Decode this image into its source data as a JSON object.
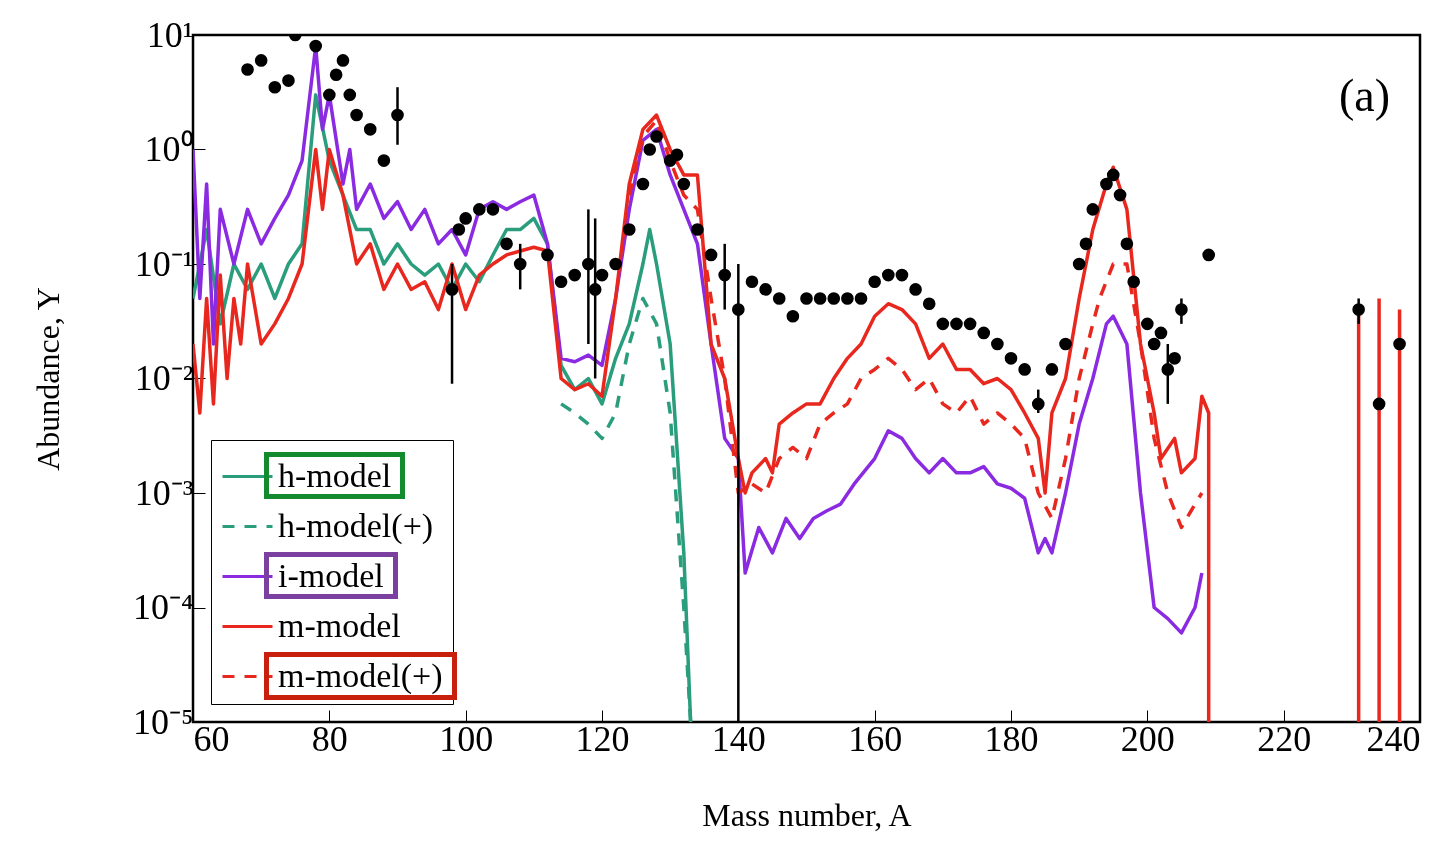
{
  "chart_data": {
    "type": "line",
    "xlabel": "Mass number, A",
    "ylabel": "Abundance, Y",
    "annotations": [
      "(a)"
    ],
    "xlim": [
      60,
      240
    ],
    "xticks": [
      60,
      80,
      100,
      120,
      140,
      160,
      180,
      200,
      220,
      240
    ],
    "ylim": [
      1e-05,
      10
    ],
    "log": true,
    "yticks": [
      {
        "value": 1e-05,
        "label": "10⁻⁵"
      },
      {
        "value": 0.0001,
        "label": "10⁻⁴"
      },
      {
        "value": 0.001,
        "label": "10⁻³"
      },
      {
        "value": 0.01,
        "label": "10⁻²"
      },
      {
        "value": 0.1,
        "label": "10⁻¹"
      },
      {
        "value": 1,
        "label": "10⁰"
      },
      {
        "value": 10,
        "label": "10¹"
      }
    ],
    "legend": "bottom left",
    "series": [
      {
        "name": "h-model",
        "color": "#2a9d7c",
        "line_style": "solid",
        "x": [
          60,
          62,
          64,
          66,
          68,
          70,
          72,
          74,
          76,
          78,
          80,
          82,
          84,
          86,
          88,
          90,
          92,
          94,
          96,
          98,
          100,
          102,
          104,
          106,
          108,
          110,
          112,
          114,
          116,
          118,
          120,
          122,
          124,
          126,
          127,
          128,
          130,
          132,
          133
        ],
        "values": [
          0.05,
          0.2,
          0.03,
          0.1,
          0.06,
          0.1,
          0.05,
          0.1,
          0.15,
          3,
          0.8,
          0.4,
          0.2,
          0.2,
          0.1,
          0.15,
          0.1,
          0.08,
          0.1,
          0.06,
          0.1,
          0.07,
          0.12,
          0.2,
          0.2,
          0.25,
          0.15,
          0.013,
          0.008,
          0.01,
          0.006,
          0.015,
          0.03,
          0.1,
          0.2,
          0.1,
          0.02,
          0.0003,
          1e-05
        ]
      },
      {
        "name": "h-model(+)",
        "color": "#2a9d7c",
        "line_style": "dashed",
        "x": [
          114,
          116,
          118,
          120,
          122,
          124,
          126,
          128,
          130,
          132,
          133
        ],
        "values": [
          0.006,
          0.005,
          0.004,
          0.003,
          0.005,
          0.02,
          0.05,
          0.03,
          0.005,
          0.0001,
          1e-05
        ]
      },
      {
        "name": "i-model",
        "color": "#8a2be2",
        "line_style": "solid",
        "x": [
          60,
          61,
          62,
          63,
          64,
          66,
          68,
          70,
          72,
          74,
          76,
          78,
          79,
          80,
          82,
          83,
          84,
          86,
          88,
          90,
          92,
          94,
          96,
          98,
          100,
          102,
          104,
          106,
          108,
          110,
          112,
          114,
          116,
          118,
          120,
          122,
          124,
          126,
          128,
          130,
          132,
          134,
          136,
          138,
          140,
          141,
          143,
          145,
          147,
          149,
          151,
          153,
          155,
          157,
          160,
          162,
          164,
          166,
          168,
          170,
          172,
          174,
          176,
          178,
          180,
          182,
          184,
          185,
          186,
          188,
          190,
          192,
          194,
          195,
          197,
          199,
          201,
          203,
          205,
          207,
          208
        ],
        "values": [
          1.0,
          0.05,
          0.5,
          0.02,
          0.3,
          0.1,
          0.3,
          0.15,
          0.25,
          0.4,
          0.8,
          8,
          1.5,
          3,
          0.5,
          1.0,
          0.3,
          0.5,
          0.25,
          0.35,
          0.2,
          0.3,
          0.15,
          0.2,
          0.12,
          0.3,
          0.35,
          0.3,
          0.35,
          0.4,
          0.15,
          0.015,
          0.014,
          0.016,
          0.013,
          0.05,
          0.3,
          1.2,
          1.5,
          0.6,
          0.3,
          0.15,
          0.02,
          0.003,
          0.002,
          0.0002,
          0.0005,
          0.0003,
          0.0006,
          0.0004,
          0.0006,
          0.0007,
          0.0008,
          0.0012,
          0.002,
          0.0035,
          0.003,
          0.002,
          0.0015,
          0.002,
          0.0015,
          0.0015,
          0.0017,
          0.0012,
          0.0011,
          0.0009,
          0.0003,
          0.0004,
          0.0003,
          0.001,
          0.004,
          0.01,
          0.03,
          0.035,
          0.02,
          0.001,
          0.0001,
          8e-05,
          6e-05,
          0.0001,
          0.0002
        ]
      },
      {
        "name": "m-model",
        "color": "#e8281e",
        "line_style": "solid",
        "x": [
          60,
          61,
          62,
          63,
          64,
          65,
          66,
          67,
          68,
          70,
          72,
          74,
          76,
          78,
          79,
          80,
          82,
          84,
          86,
          88,
          90,
          92,
          94,
          96,
          98,
          100,
          102,
          104,
          106,
          108,
          110,
          112,
          114,
          116,
          118,
          120,
          122,
          124,
          126,
          128,
          130,
          132,
          134,
          136,
          138,
          140,
          141,
          142,
          144,
          145,
          146,
          148,
          150,
          152,
          154,
          156,
          158,
          160,
          162,
          164,
          166,
          168,
          170,
          172,
          174,
          176,
          178,
          180,
          182,
          184,
          185,
          186,
          188,
          190,
          192,
          194,
          195,
          197,
          199,
          201,
          202,
          204,
          205,
          207,
          208,
          209,
          209,
          220,
          231,
          231,
          233,
          234,
          234,
          236,
          237,
          237
        ],
        "values": [
          0.02,
          0.005,
          0.05,
          0.006,
          0.08,
          0.01,
          0.05,
          0.02,
          0.1,
          0.02,
          0.03,
          0.05,
          0.1,
          1.0,
          0.3,
          1.0,
          0.4,
          0.1,
          0.15,
          0.06,
          0.1,
          0.06,
          0.07,
          0.04,
          0.1,
          0.04,
          0.08,
          0.1,
          0.12,
          0.13,
          0.14,
          0.13,
          0.01,
          0.008,
          0.009,
          0.007,
          0.05,
          0.5,
          1.5,
          2.0,
          1.0,
          0.6,
          0.6,
          0.02,
          0.01,
          0.002,
          0.001,
          0.0015,
          0.002,
          0.0015,
          0.004,
          0.005,
          0.006,
          0.006,
          0.01,
          0.015,
          0.02,
          0.035,
          0.045,
          0.04,
          0.03,
          0.015,
          0.02,
          0.012,
          0.012,
          0.009,
          0.01,
          0.008,
          0.005,
          0.003,
          0.001,
          0.005,
          0.01,
          0.05,
          0.2,
          0.5,
          0.7,
          0.3,
          0.02,
          0.005,
          0.002,
          0.003,
          0.0015,
          0.002,
          0.007,
          0.005,
          1e-05,
          null,
          1e-05,
          0.04,
          null,
          1e-05,
          0.05,
          null,
          1e-05,
          0.04
        ]
      },
      {
        "name": "m-model(+)",
        "color": "#e8281e",
        "line_style": "dashed",
        "x": [
          124,
          126,
          128,
          130,
          132,
          134,
          136,
          138,
          140,
          142,
          144,
          146,
          148,
          150,
          152,
          154,
          156,
          158,
          160,
          162,
          164,
          166,
          168,
          170,
          172,
          174,
          176,
          178,
          180,
          182,
          184,
          186,
          188,
          190,
          192,
          193,
          195,
          197,
          199,
          201,
          203,
          205,
          207,
          208
        ],
        "values": [
          0.4,
          1.3,
          1.8,
          0.8,
          0.4,
          0.3,
          0.05,
          0.01,
          0.001,
          0.0012,
          0.001,
          0.002,
          0.0025,
          0.002,
          0.004,
          0.005,
          0.006,
          0.01,
          0.012,
          0.015,
          0.012,
          0.008,
          0.01,
          0.006,
          0.005,
          0.007,
          0.004,
          0.005,
          0.004,
          0.003,
          0.001,
          0.0006,
          0.002,
          0.01,
          0.03,
          0.05,
          0.1,
          0.1,
          0.02,
          0.003,
          0.001,
          0.0005,
          0.0008,
          0.001
        ]
      },
      {
        "type": "scatter",
        "color": "#000000",
        "marker": "circle",
        "x": [
          68,
          70,
          72,
          74,
          75,
          78,
          80,
          81,
          82,
          83,
          84,
          86,
          88,
          90,
          98,
          99,
          100,
          102,
          104,
          106,
          108,
          112,
          114,
          116,
          118,
          119,
          120,
          122,
          124,
          126,
          127,
          128,
          130,
          131,
          132,
          134,
          136,
          138,
          140,
          142,
          144,
          146,
          148,
          150,
          152,
          154,
          156,
          158,
          160,
          162,
          164,
          166,
          168,
          170,
          172,
          174,
          176,
          178,
          180,
          182,
          184,
          186,
          188,
          190,
          191,
          192,
          194,
          195,
          196,
          197,
          198,
          200,
          201,
          202,
          203,
          204,
          205,
          209,
          231,
          234,
          237
        ],
        "values": [
          5,
          6,
          3.5,
          4,
          10,
          8,
          3,
          4.5,
          6,
          3,
          2,
          1.5,
          0.8,
          2,
          0.06,
          0.2,
          0.25,
          0.3,
          0.3,
          0.15,
          0.1,
          0.12,
          0.07,
          0.08,
          0.1,
          0.06,
          0.08,
          0.1,
          0.2,
          0.5,
          1.0,
          1.3,
          0.8,
          0.9,
          0.5,
          0.2,
          0.12,
          0.08,
          0.04,
          0.07,
          0.06,
          0.05,
          0.035,
          0.05,
          0.05,
          0.05,
          0.05,
          0.05,
          0.07,
          0.08,
          0.08,
          0.06,
          0.045,
          0.03,
          0.03,
          0.03,
          0.025,
          0.02,
          0.015,
          0.012,
          0.006,
          0.012,
          0.02,
          0.1,
          0.15,
          0.3,
          0.5,
          0.6,
          0.4,
          0.15,
          0.07,
          0.03,
          0.02,
          0.025,
          0.012,
          0.015,
          0.04,
          0.12,
          0.04,
          0.006,
          0.02
        ],
        "errors": [
          null,
          null,
          null,
          null,
          null,
          null,
          null,
          null,
          null,
          null,
          null,
          null,
          null,
          [
            1.1,
            3.5
          ],
          [
            0.009,
            0.1
          ],
          null,
          null,
          null,
          null,
          null,
          [
            0.06,
            0.15
          ],
          null,
          null,
          null,
          [
            0.02,
            0.3
          ],
          [
            0.01,
            0.25
          ],
          null,
          null,
          null,
          null,
          null,
          null,
          null,
          null,
          null,
          null,
          null,
          [
            0.04,
            0.15
          ],
          [
            1e-05,
            0.1
          ],
          null,
          null,
          null,
          null,
          null,
          null,
          null,
          null,
          null,
          null,
          null,
          null,
          null,
          null,
          null,
          null,
          null,
          null,
          null,
          null,
          null,
          [
            0.005,
            0.008
          ],
          null,
          null,
          null,
          null,
          null,
          null,
          null,
          null,
          null,
          null,
          null,
          null,
          null,
          [
            0.006,
            0.02
          ],
          null,
          [
            0.03,
            0.05
          ],
          null,
          [
            0.03,
            0.05
          ],
          null,
          null
        ]
      }
    ]
  }
}
